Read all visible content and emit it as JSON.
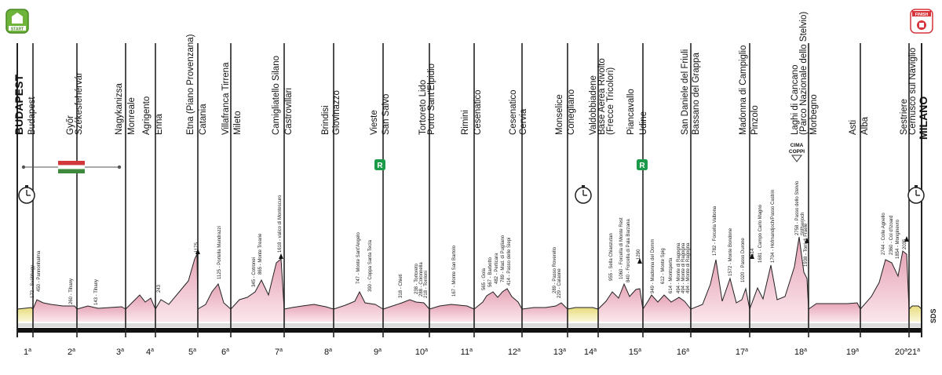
{
  "start_label": "START",
  "finish_label": "FINISH",
  "start_city": "BUDAPEST",
  "finish_city": "MILANO",
  "sponsor_mark": "SDS",
  "cima_coppi_label": [
    "CIMA",
    "COPPI"
  ],
  "rest_day_symbol": "R",
  "stages": [
    {
      "num": "1",
      "sup": "a",
      "label": "Budapest"
    },
    {
      "num": "2",
      "sup": "a",
      "label": "Győr\nSzékesfehérvár"
    },
    {
      "num": "3",
      "sup": "a",
      "label": "Nagykanizsa"
    },
    {
      "num": "4",
      "sup": "a",
      "label": "Monreale\nAgrigento"
    },
    {
      "num": "5",
      "sup": "a",
      "label": "Enna"
    },
    {
      "num": "6",
      "sup": "a",
      "label": "Etna (Piano Provenzana)\nCatania"
    },
    {
      "num": "7",
      "sup": "a",
      "label": "Villafranca Tirrena\nMileto"
    },
    {
      "num": "8",
      "sup": "a",
      "label": "Camigliatello Silano\nCastrovillari"
    },
    {
      "num": "9",
      "sup": "a",
      "label": "Brindisi\nGiovinazzo"
    },
    {
      "num": "10",
      "sup": "a",
      "label": "Vieste"
    },
    {
      "num": "11",
      "sup": "a",
      "label": "San Salvo\nTortoreto Lido"
    },
    {
      "num": "12",
      "sup": "a",
      "label": "Porto Sant'Elpidio\nRimini"
    },
    {
      "num": "13",
      "sup": "a",
      "label": "Cesenatico\nCesenatico"
    },
    {
      "num": "14",
      "sup": "a",
      "label": "Cervia\nMonselice"
    },
    {
      "num": "15",
      "sup": "a",
      "label": "Conegliano\nValdobbiadene"
    },
    {
      "num": "16",
      "sup": "a",
      "label": "Base Aerea Rivolto\n(Frecce Tricolori)\nPiancavallo"
    },
    {
      "num": "17",
      "sup": "a",
      "label": "Udine\nSan Daniele del Friuli"
    },
    {
      "num": "18",
      "sup": "a",
      "label": "Bassano del Grappa\nMadonna di Campiglio"
    },
    {
      "num": "19",
      "sup": "a",
      "label": "Pinzolo\nLaghi di Cancano\n(Parco Nazionale dello Stelvio)"
    },
    {
      "num": "20",
      "sup": "a",
      "label": "Morbegno\nAsti"
    },
    {
      "num": "21",
      "sup": "a",
      "label": "Alba\nSestriere\nCernusco sul Naviglio"
    }
  ],
  "stage_top_labels": [
    "Budapest",
    "Győr",
    "Székesfehérvár",
    "Nagykanizsa",
    "Monreale",
    "Agrigento",
    "Enna",
    "Etna (Piano Provenzana)",
    "Catania",
    "Villafranca Tirrena",
    "Mileto",
    "Camigliatello Silano",
    "Castrovillari",
    "Brindisi",
    "Giovinazzo",
    "Vieste",
    "San Salvo",
    "Tortoreto Lido",
    "Porto Sant'Elpidio",
    "Rimini",
    "Cesenatico",
    "Cesenatico",
    "Cervia",
    "Monselice",
    "Conegliano",
    "Valdobbiadene",
    "Base Aerea Rivolto",
    "(Frecce Tricolori)",
    "Piancavallo",
    "Udine",
    "San Daniele del Friuli",
    "Bassano del Grappa",
    "Madonna di Campiglio",
    "Pinzolo",
    "Laghi di Cancano",
    "(Parco Nazionale dello Stelvio)",
    "Morbegno",
    "Asti",
    "Alba",
    "Sestriere",
    "Cernusco sul Naviglio"
  ],
  "climbs": [
    "172 - Svábhegy",
    "450 - Pannonhalma",
    "260 - Tihany",
    "143 - Tihany",
    "243",
    "1175",
    "1125 - Portella Mandrazzi",
    "345 - Cotronei",
    "865 - Monte Trearie",
    "1618 - valico di Montescuro",
    "747 - Monte Sant'Angelo",
    "390 - Coppa Santa Tecla",
    "318 - Chieti",
    "238 - Tortoreto",
    "288 - Colonnella",
    "218 - Torrioni",
    "167 - Monte San Bartolo",
    "565 - Gola",
    "567 - Barbotto",
    "482 - Perticara",
    "789 - Mad. di Pugliano",
    "414 - Passo delle Siepi",
    "289 - Passo Roverello",
    "229 - Calaone",
    "955 - Sella Chianzutan",
    "1060 - Forcella di Monte Rest",
    "840 - Forcella di Pala Barzana",
    "1290",
    "949 - Madonna del Domm",
    "612 - Monte Spig",
    "614 - Montsperta",
    "494 - Monte di Ragogna",
    "494 - Monte di Ragogna",
    "494 - Monte di Ragogna",
    "1782 - Forcella Valbona",
    "1572 - Monte Bondone",
    "1020 - Passo Durone",
    "1514",
    "1681 - Campo Carlo Magno",
    "1704 - Hofmandjoch/Passo Castrin",
    "2758 - Passo dello Stelvio",
    "Stilfserjoch",
    "1938 - Torri di Fraele",
    "2744 - Colle Agnello",
    "2360 - Col d'Izoard",
    "1854 - Monginevro",
    "2035"
  ]
}
